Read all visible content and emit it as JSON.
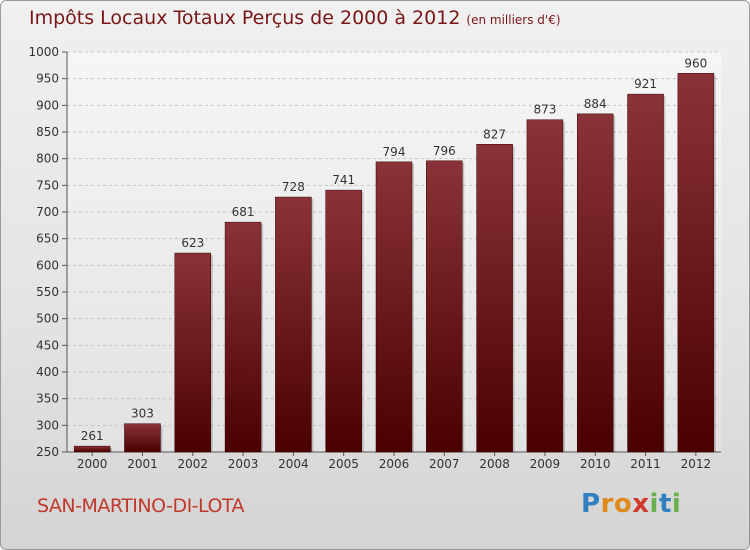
{
  "header": {
    "title": "Impôts Locaux Totaux Perçus de 2000 à 2012",
    "unit": "(en milliers d'€)"
  },
  "commune": "SAN-MARTINO-DI-LOTA",
  "logo": {
    "letters": [
      "P",
      "r",
      "o",
      "x",
      "i",
      "t",
      "i"
    ],
    "colors": [
      "#2f7fc1",
      "#e08a1e",
      "#e08a1e",
      "#d13a2a",
      "#6ab04c",
      "#2f7fc1",
      "#6ab04c"
    ]
  },
  "colors": {
    "bar_top": "#8a3338",
    "bar_bottom": "#4a0000",
    "title": "#7a1618",
    "commune": "#c0392b"
  },
  "chart_data": {
    "type": "bar",
    "title": "Impôts Locaux Totaux Perçus de 2000 à 2012",
    "ylabel": "en milliers d'€",
    "xlabel": "",
    "categories": [
      "2000",
      "2001",
      "2002",
      "2003",
      "2004",
      "2005",
      "2006",
      "2007",
      "2008",
      "2009",
      "2010",
      "2011",
      "2012"
    ],
    "values": [
      261,
      303,
      623,
      681,
      728,
      741,
      794,
      796,
      827,
      873,
      884,
      921,
      960
    ],
    "ylim": [
      250,
      1000
    ],
    "yticks": [
      250,
      300,
      350,
      400,
      450,
      500,
      550,
      600,
      650,
      700,
      750,
      800,
      850,
      900,
      950,
      1000
    ],
    "grid": true
  }
}
